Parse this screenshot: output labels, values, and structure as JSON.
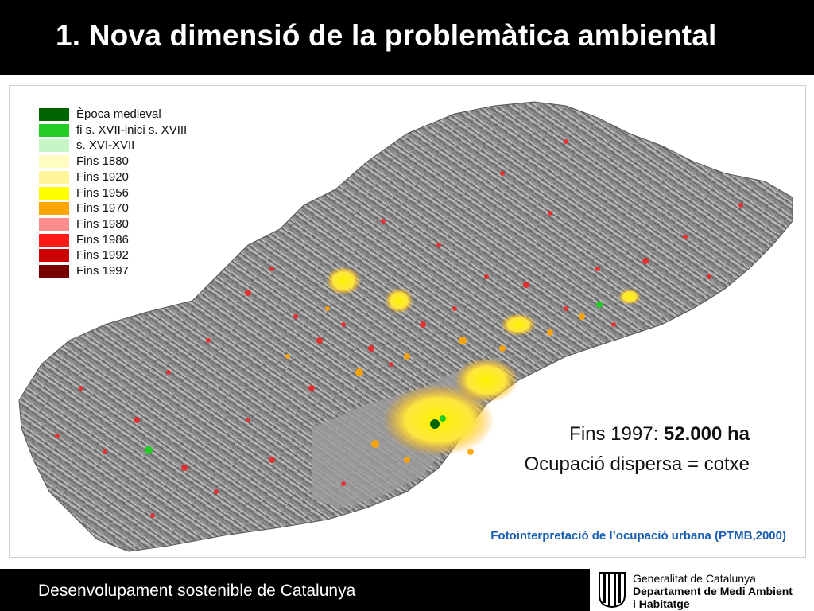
{
  "title": "1. Nova dimensió de la problemàtica ambiental",
  "legend": {
    "items": [
      {
        "label": "Època medieval",
        "color": "#006400"
      },
      {
        "label": "fi s. XVII-inici s. XVIII",
        "color": "#22cc22"
      },
      {
        "label": "s. XVI-XVII",
        "color": "#c6f5c6"
      },
      {
        "label": "Fins 1880",
        "color": "#fffcc4"
      },
      {
        "label": "Fins 1920",
        "color": "#fff59a"
      },
      {
        "label": "Fins 1956",
        "color": "#ffff00"
      },
      {
        "label": "Fins 1970",
        "color": "#ffa500"
      },
      {
        "label": "Fins 1980",
        "color": "#ff8c8c"
      },
      {
        "label": "Fins 1986",
        "color": "#ff1a1a"
      },
      {
        "label": "Fins 1992",
        "color": "#cc0000"
      },
      {
        "label": "Fins 1997",
        "color": "#7a0000"
      }
    ]
  },
  "annotation": {
    "prefix": "Fins 1997: ",
    "value": "52.000 ha",
    "line2": "Ocupació dispersa = cotxe"
  },
  "caption": "Fotointerpretació de l’ocupació urbana (PTMB,2000)",
  "footer": "Desenvolupament sostenible de Catalunya",
  "logo": {
    "line1": "Generalitat de Catalunya",
    "line2": "Departament de Medi Ambient",
    "line3": "i Habitatge"
  }
}
